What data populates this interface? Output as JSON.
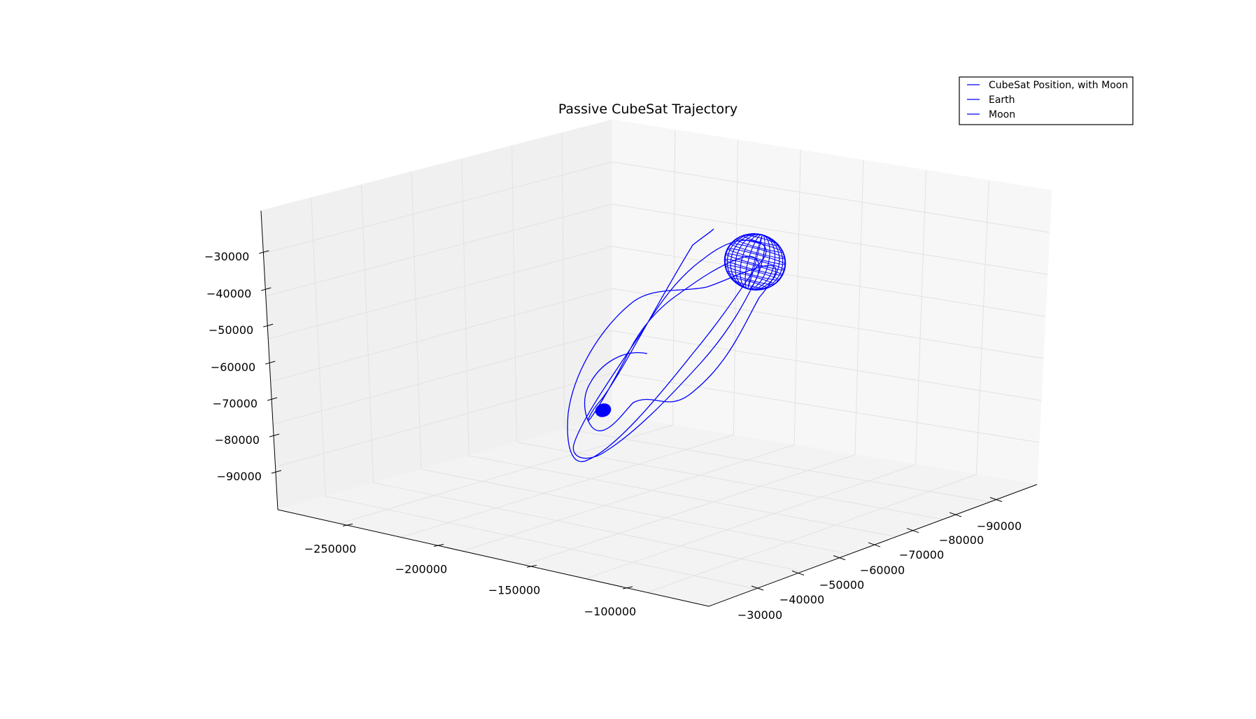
{
  "chart_data": {
    "type": "line",
    "projection": "3d",
    "title": "Passive CubeSat Trajectory",
    "xlabel": "",
    "ylabel": "",
    "zlabel": "",
    "x_ticks": [
      "−250000",
      "−200000",
      "−150000",
      "−100000"
    ],
    "y_ticks": [
      "−30000",
      "−40000",
      "−50000",
      "−60000",
      "−70000",
      "−80000",
      "−90000"
    ],
    "z_ticks": [
      "−30000",
      "−40000",
      "−50000",
      "−60000",
      "−70000",
      "−80000",
      "−90000"
    ],
    "xlim": [
      -280000,
      -50000
    ],
    "ylim": [
      -20000,
      -95000
    ],
    "zlim": [
      -100000,
      -20000
    ],
    "grid": true,
    "legend": {
      "placement": "top-right",
      "entries": [
        "CubeSat Position, with Moon",
        "Earth",
        "Moon"
      ]
    },
    "series_color": "#0000ff",
    "series": [
      {
        "name": "CubeSat Position, with Moon",
        "kind": "trajectory"
      },
      {
        "name": "Earth",
        "kind": "sphere"
      },
      {
        "name": "Moon",
        "kind": "sphere"
      }
    ]
  }
}
